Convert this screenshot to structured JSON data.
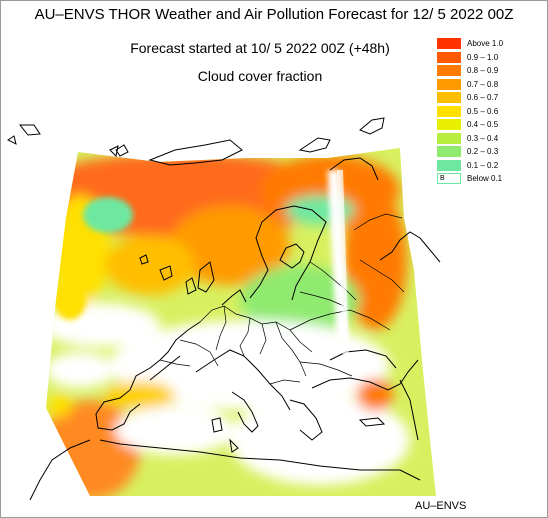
{
  "header": {
    "title": "AU–ENVS THOR Weather and Air Pollution Forecast for 12/ 5 2022  00Z",
    "subtitle": "Forecast started at 10/ 5 2022  00Z (+48h)",
    "field": "Cloud cover fraction"
  },
  "legend": {
    "items": [
      {
        "label": "Above   1.0",
        "color": "#ff3300"
      },
      {
        "label": "0.9 – 1.0",
        "color": "#ff5a00"
      },
      {
        "label": "0.8 – 0.9",
        "color": "#ff7a00"
      },
      {
        "label": "0.7 – 0.8",
        "color": "#ff9a00"
      },
      {
        "label": "0.6 – 0.7",
        "color": "#ffbe00"
      },
      {
        "label": "0.5 – 0.6",
        "color": "#ffe000"
      },
      {
        "label": "0.4 – 0.5",
        "color": "#e8f000"
      },
      {
        "label": "0.3 – 0.4",
        "color": "#b8ee40"
      },
      {
        "label": "0.2 – 0.3",
        "color": "#90ea70"
      },
      {
        "label": "0.1 – 0.2",
        "color": "#6ee8a0"
      },
      {
        "label": "Below   0.1",
        "color": "#ffffff",
        "marker": "B"
      }
    ]
  },
  "credit": "AU–ENVS"
}
